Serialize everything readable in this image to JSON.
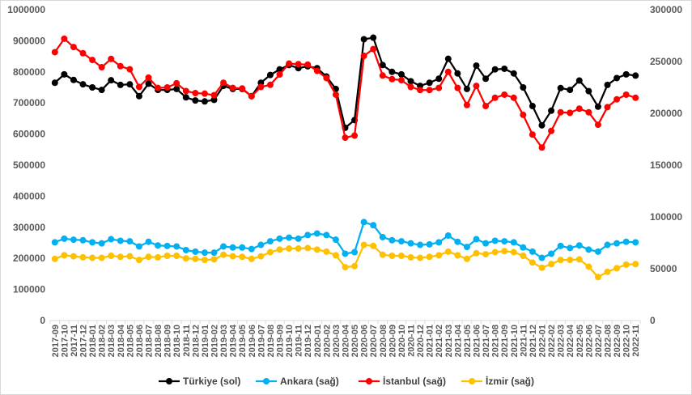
{
  "chart_data": {
    "type": "line",
    "title": "",
    "xlabel": "",
    "ylabel_left": "",
    "ylabel_right": "",
    "grid": false,
    "legend_position": "bottom",
    "y_left": {
      "min": 0,
      "max": 1000000,
      "ticks": [
        "0",
        "100000",
        "200000",
        "300000",
        "400000",
        "500000",
        "600000",
        "700000",
        "800000",
        "900000",
        "1000000"
      ]
    },
    "y_right": {
      "min": 0,
      "max": 300000,
      "ticks": [
        "0",
        "50000",
        "100000",
        "150000",
        "200000",
        "250000",
        "300000"
      ]
    },
    "categories": [
      "2017-09",
      "2017-10",
      "2017-11",
      "2017-12",
      "2018-01",
      "2018-02",
      "2018-03",
      "2018-04",
      "2018-05",
      "2018-06",
      "2018-07",
      "2018-08",
      "2018-09",
      "2018-10",
      "2018-11",
      "2018-12",
      "2019-01",
      "2019-02",
      "2019-03",
      "2019-04",
      "2019-05",
      "2019-06",
      "2019-07",
      "2019-08",
      "2019-09",
      "2019-10",
      "2019-11",
      "2019-12",
      "2020-01",
      "2020-02",
      "2020-03",
      "2020-04",
      "2020-05",
      "2020-06",
      "2020-07",
      "2020-08",
      "2020-09",
      "2020-10",
      "2020-11",
      "2020-12",
      "2021-01",
      "2021-02",
      "2021-03",
      "2021-04",
      "2021-05",
      "2021-06",
      "2021-07",
      "2021-08",
      "2021-09",
      "2021-10",
      "2021-11",
      "2021-12",
      "2022-01",
      "2022-02",
      "2022-03",
      "2022-04",
      "2022-05",
      "2022-06",
      "2022-07",
      "2022-08",
      "2022-09",
      "2022-10",
      "2022-11"
    ],
    "series": [
      {
        "name": "Türkiye (sol)",
        "axis": "left",
        "color": "#000000",
        "values": [
          765000,
          792000,
          774000,
          760000,
          750000,
          742000,
          773000,
          758000,
          760000,
          722000,
          762000,
          742000,
          742000,
          745000,
          718000,
          708000,
          705000,
          710000,
          755000,
          745000,
          745000,
          722000,
          765000,
          790000,
          808000,
          822000,
          812000,
          818000,
          812000,
          785000,
          745000,
          620000,
          645000,
          905000,
          910000,
          822000,
          800000,
          792000,
          770000,
          755000,
          765000,
          778000,
          842000,
          795000,
          745000,
          820000,
          778000,
          808000,
          810000,
          795000,
          750000,
          690000,
          628000,
          675000,
          748000,
          742000,
          772000,
          738000,
          688000,
          758000,
          780000,
          792000,
          788000
        ]
      },
      {
        "name": "Ankara (sağ)",
        "axis": "right",
        "color": "#00B0F0",
        "values": [
          75500,
          79000,
          78000,
          77500,
          75500,
          74500,
          78500,
          77000,
          76500,
          71500,
          76000,
          72500,
          72000,
          71500,
          68000,
          66500,
          65500,
          65500,
          71500,
          70500,
          70500,
          69000,
          73000,
          76500,
          79000,
          80000,
          79000,
          82500,
          84000,
          82500,
          78000,
          64500,
          66000,
          95000,
          92000,
          80500,
          77500,
          76500,
          74500,
          73000,
          73500,
          75500,
          82000,
          76000,
          71000,
          78500,
          74500,
          77000,
          76500,
          75500,
          70500,
          66500,
          60500,
          64500,
          72000,
          70000,
          72500,
          68500,
          66500,
          73000,
          74500,
          76000,
          75500
        ]
      },
      {
        "name": "İstanbul (sağ)",
        "axis": "right",
        "color": "#FF0000",
        "values": [
          259000,
          272000,
          264000,
          258000,
          251500,
          244500,
          252500,
          245500,
          242500,
          225500,
          234500,
          224500,
          225000,
          229000,
          221500,
          219500,
          219000,
          217500,
          229500,
          224500,
          224000,
          216500,
          225500,
          227500,
          237500,
          248000,
          247500,
          247000,
          241000,
          234000,
          218000,
          176500,
          178500,
          255500,
          262000,
          236500,
          233000,
          232000,
          225500,
          222500,
          222500,
          224500,
          240000,
          224500,
          208000,
          226500,
          207000,
          215000,
          218000,
          215000,
          198500,
          179500,
          167000,
          183000,
          201000,
          200500,
          204500,
          201000,
          189000,
          206000,
          213500,
          218000,
          215000
        ]
      },
      {
        "name": "İzmir (sağ)",
        "axis": "right",
        "color": "#FFC000",
        "values": [
          59500,
          63000,
          62000,
          61000,
          60500,
          60500,
          62500,
          61500,
          62000,
          58500,
          61500,
          61000,
          62500,
          62500,
          60000,
          59500,
          58500,
          59000,
          63500,
          62000,
          61500,
          59500,
          62000,
          66000,
          68500,
          69500,
          69500,
          70000,
          68500,
          66500,
          63000,
          51500,
          52500,
          73000,
          72000,
          63500,
          62500,
          62500,
          61000,
          60500,
          61500,
          63000,
          66500,
          63000,
          59500,
          65000,
          64000,
          66000,
          67000,
          66000,
          62500,
          56000,
          51000,
          54500,
          58500,
          58500,
          59000,
          52000,
          42000,
          47000,
          50500,
          54000,
          54500
        ]
      }
    ]
  }
}
